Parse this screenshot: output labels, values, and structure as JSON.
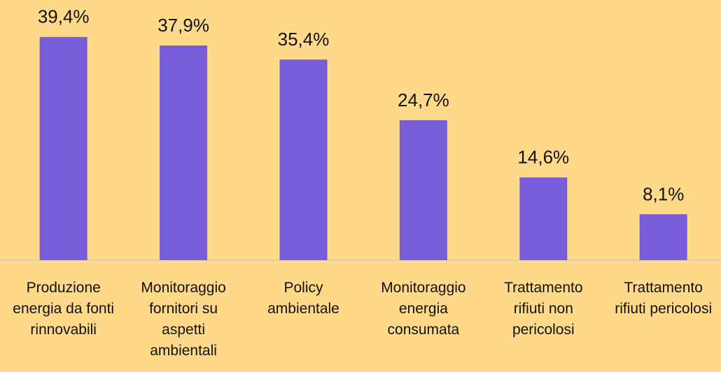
{
  "chart_data": {
    "type": "bar",
    "categories": [
      "Produzione energia da fonti rinnovabili",
      "Monitoraggio fornitori su aspetti ambientali",
      "Policy ambientale",
      "Monitoraggio energia consumata",
      "Trattamento rifiuti non pericolosi",
      "Trattamento rifiuti pericolosi"
    ],
    "values": [
      39.4,
      37.9,
      35.4,
      24.7,
      14.6,
      8.1
    ],
    "value_labels": [
      "39,4%",
      "37,9%",
      "35,4%",
      "24,7%",
      "14,6%",
      "8,1%"
    ],
    "color": "#775dd8"
  }
}
